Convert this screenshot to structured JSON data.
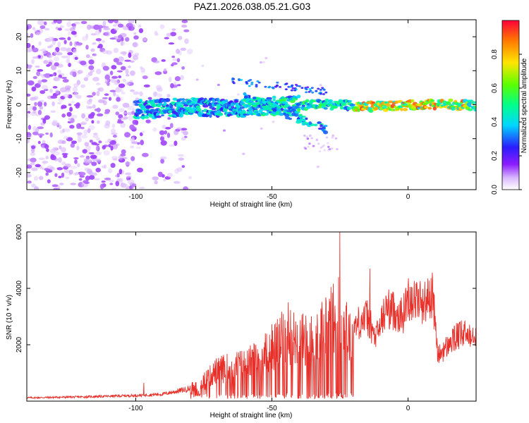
{
  "page": {
    "title": "PAZ1.2026.038.05.21.G03"
  },
  "colors": {
    "snr_line": "#e8302a",
    "frame": "#000000",
    "background": "#ffffff"
  },
  "chart_data": [
    {
      "type": "heatmap",
      "title": "PAZ1.2026.038.05.21.G03",
      "xlabel": "Height of straight line (km)",
      "ylabel": "Frequency (Hz)",
      "xlim": [
        -140,
        25
      ],
      "ylim": [
        -25,
        25
      ],
      "xticks": [
        -100,
        -50,
        0
      ],
      "xtick_labels": [
        "-100",
        "-50",
        "0"
      ],
      "yticks": [
        20,
        10,
        0,
        -10,
        -20
      ],
      "ytick_labels": [
        "20",
        "10",
        "0",
        "-10",
        "-20"
      ],
      "colorbar": {
        "label": "Normalized spectral amplitude",
        "range": [
          0,
          1
        ],
        "ticks": [
          0.0,
          0.2,
          0.4,
          0.6,
          0.8
        ],
        "tick_labels": [
          "0.0",
          "0.2",
          "0.4",
          "0.6",
          "0.8"
        ],
        "colormap": "rainbow (white-violet-blue-cyan-green-yellow-red)"
      },
      "features": [
        {
          "name": "noise",
          "x_range": [
            -140,
            -80
          ],
          "freq_range": [
            -25,
            25
          ],
          "amplitude": 0.12
        },
        {
          "name": "main_signal",
          "x_range": [
            -100,
            25
          ],
          "freq_center": 0,
          "amplitude_peak": 0.95
        },
        {
          "name": "secondary_branch",
          "x_range": [
            -60,
            -30
          ],
          "freq_start": 2,
          "freq_end": -7,
          "amplitude": 0.4
        },
        {
          "name": "upper_branch",
          "x_range": [
            -65,
            -30
          ],
          "freq_start": 7,
          "freq_end": 4,
          "amplitude": 0.3
        }
      ]
    },
    {
      "type": "line",
      "xlabel": "Height of straight line (km)",
      "ylabel": "SNR (10 * v/v)",
      "xlim": [
        -140,
        25
      ],
      "ylim": [
        0,
        6000
      ],
      "xticks": [
        -100,
        -50,
        0
      ],
      "xtick_labels": [
        "-100",
        "-50",
        "0"
      ],
      "yticks": [
        2000,
        4000,
        6000
      ],
      "ytick_labels": [
        "2000",
        "4000",
        "6000"
      ],
      "series": [
        {
          "name": "SNR",
          "x": [
            -140,
            -120,
            -100,
            -90,
            -80,
            -75,
            -70,
            -65,
            -60,
            -55,
            -50,
            -45,
            -40,
            -35,
            -30,
            -27,
            -25,
            -22,
            -18,
            -15,
            -12,
            -8,
            -5,
            -2,
            0,
            3,
            6,
            9,
            11,
            14,
            18,
            22,
            25
          ],
          "values": [
            120,
            150,
            200,
            250,
            450,
            700,
            1100,
            1200,
            1300,
            1500,
            1900,
            2300,
            2200,
            2100,
            2700,
            3000,
            3100,
            2300,
            2800,
            3000,
            2200,
            3300,
            3200,
            3000,
            3700,
            3600,
            3500,
            3800,
            1600,
            1900,
            2300,
            2400,
            2500
          ],
          "peaks": [
            {
              "x": -25,
              "value": 6000
            },
            {
              "x": -14,
              "value": 4700
            },
            {
              "x": -44,
              "value": 3500
            },
            {
              "x": 9,
              "value": 4300
            },
            {
              "x": 0,
              "value": 4100
            },
            {
              "x": -97,
              "value": 650
            }
          ]
        }
      ]
    }
  ]
}
